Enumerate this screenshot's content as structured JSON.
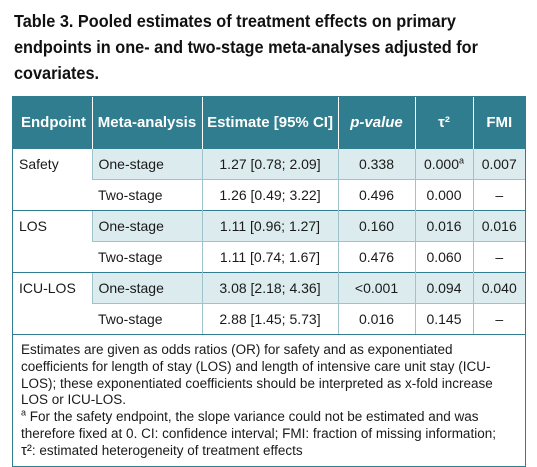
{
  "title": "Table 3. Pooled estimates of treatment effects on primary endpoints in one- and two-stage meta-analyses adjusted for covariates.",
  "accent_color": "#2f7d8e",
  "shade_color": "#dcebee",
  "headers": {
    "endpoint": "Endpoint",
    "meta": "Meta-analysis",
    "estimate": "Estimate [95% CI]",
    "pvalue": "p-value",
    "tau2": "τ²",
    "fmi": "FMI"
  },
  "groups": [
    {
      "endpoint": "Safety",
      "rows": [
        {
          "meta": "One-stage",
          "estimate": "1.27 [0.78; 2.09]",
          "pvalue": "0.338",
          "tau2": "0.000",
          "tau2_sup": "a",
          "fmi": "0.007"
        },
        {
          "meta": "Two-stage",
          "estimate": "1.26 [0.49; 3.22]",
          "pvalue": "0.496",
          "tau2": "0.000",
          "tau2_sup": "",
          "fmi": "–"
        }
      ]
    },
    {
      "endpoint": "LOS",
      "rows": [
        {
          "meta": "One-stage",
          "estimate": "1.11 [0.96; 1.27]",
          "pvalue": "0.160",
          "tau2": "0.016",
          "tau2_sup": "",
          "fmi": "0.016"
        },
        {
          "meta": "Two-stage",
          "estimate": "1.11 [0.74; 1.67]",
          "pvalue": "0.476",
          "tau2": "0.060",
          "tau2_sup": "",
          "fmi": "–"
        }
      ]
    },
    {
      "endpoint": "ICU-LOS",
      "rows": [
        {
          "meta": "One-stage",
          "estimate": "3.08 [2.18; 4.36]",
          "pvalue": "<0.001",
          "tau2": "0.094",
          "tau2_sup": "",
          "fmi": "0.040"
        },
        {
          "meta": "Two-stage",
          "estimate": "2.88 [1.45; 5.73]",
          "pvalue": "0.016",
          "tau2": "0.145",
          "tau2_sup": "",
          "fmi": "–"
        }
      ]
    }
  ],
  "notes": {
    "line1": "Estimates are given as odds ratios (OR) for safety and as exponentiated coefficients for length of stay (LOS) and length of intensive care unit stay (ICU-LOS); these exponentiated coefficients should be interpreted as x-fold increase LOS or ICU-LOS.",
    "footnote_mark": "a",
    "footnote": " For the safety endpoint, the slope variance could not be estimated and was therefore fixed at 0. CI: confidence interval; FMI: fraction of missing information;",
    "tau_symbol": "τ²",
    "tau_text": ": estimated heterogeneity of treatment effects"
  }
}
